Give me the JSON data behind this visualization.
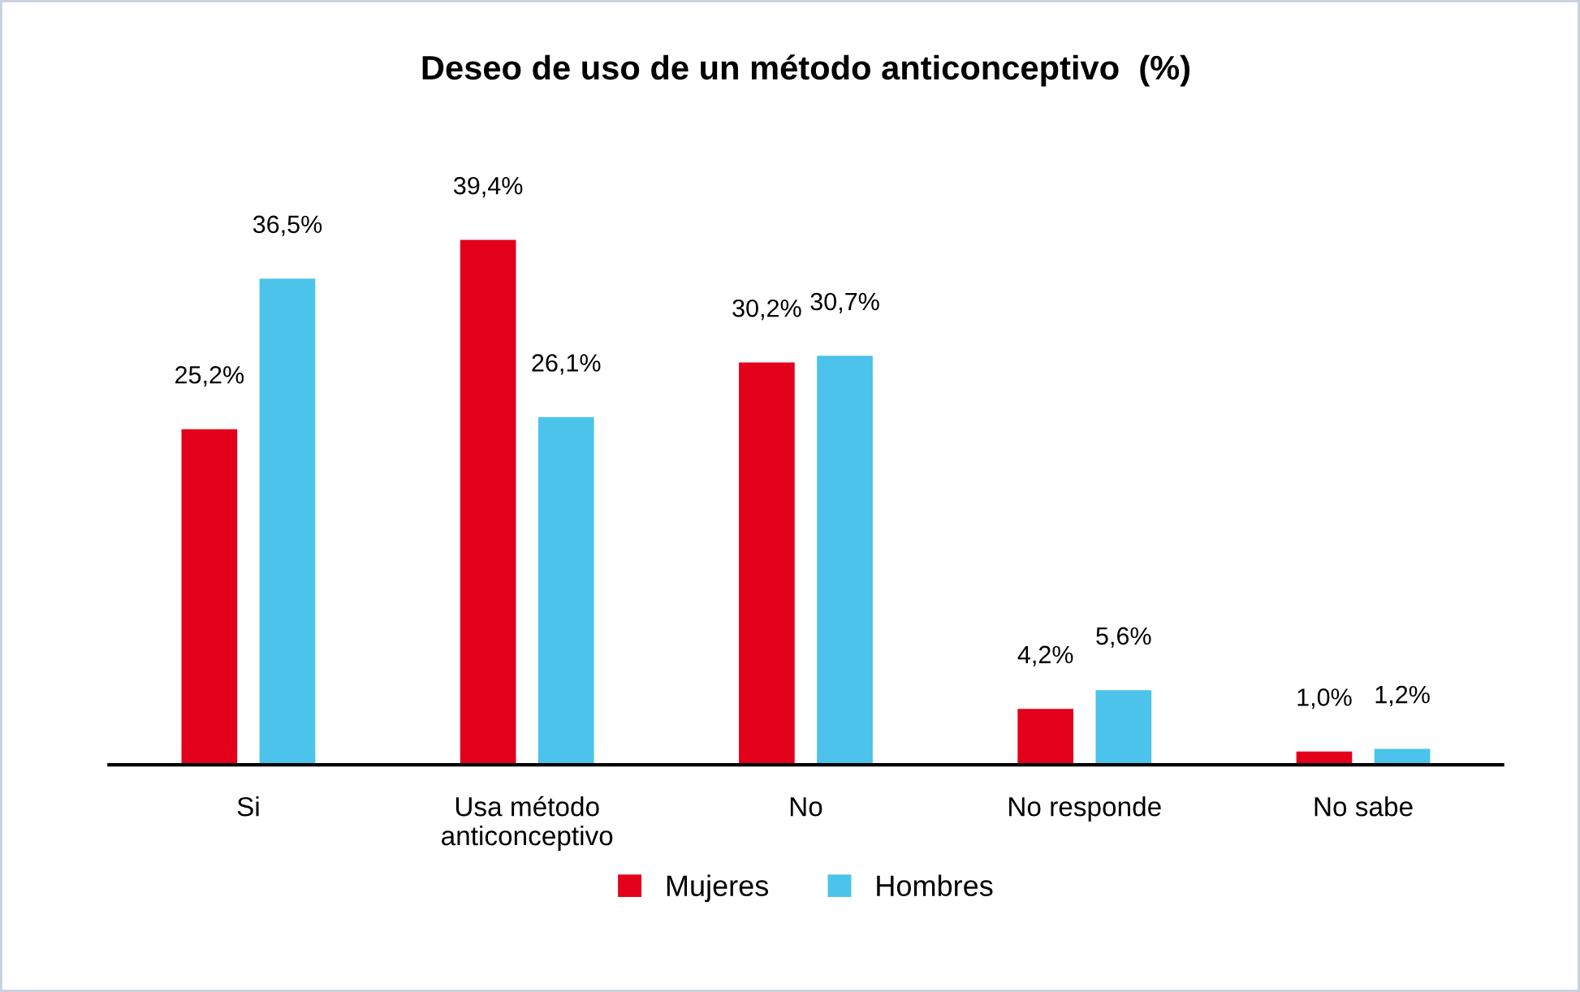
{
  "chart_data": {
    "type": "bar",
    "title": "Deseo de uso de un método anticonceptivo  (%)",
    "categories": [
      "Si",
      "Usa método\nanticonceptivo",
      "No",
      "No responde",
      "No sabe"
    ],
    "series": [
      {
        "name": "Mujeres",
        "color": "#e2001a",
        "values": [
          25.2,
          39.4,
          30.2,
          4.2,
          1.0
        ],
        "value_labels": [
          "25,2%",
          "39,4%",
          "30,2%",
          "4,2%",
          "1,0%"
        ]
      },
      {
        "name": "Hombres",
        "color": "#4bc3ea",
        "values": [
          36.5,
          26.1,
          30.7,
          5.6,
          1.2
        ],
        "value_labels": [
          "36,5%",
          "26,1%",
          "30,7%",
          "5,6%",
          "1,2%"
        ]
      }
    ],
    "grid": false,
    "legend": "bottom",
    "tick_labels": "x"
  }
}
